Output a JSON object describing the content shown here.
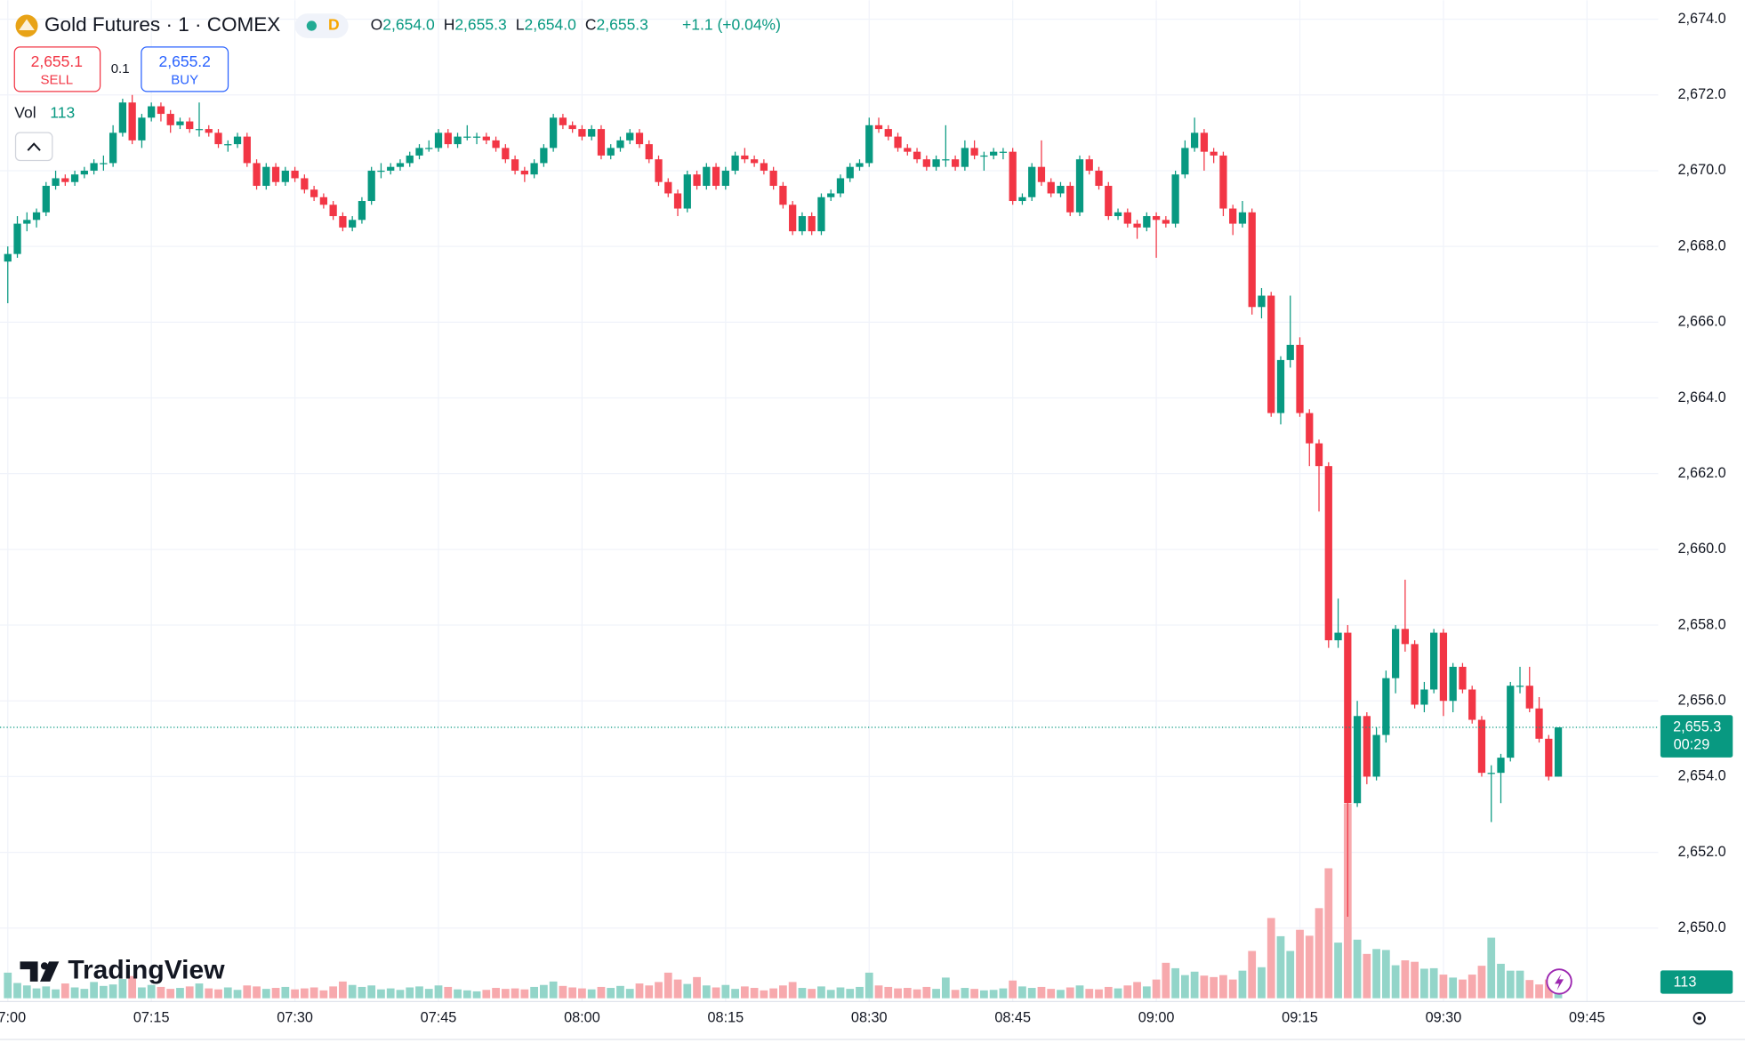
{
  "header": {
    "symbol": "Gold Futures · 1 · COMEX",
    "badge": "D",
    "ohlc": [
      {
        "key": "O",
        "value": "2,654.0"
      },
      {
        "key": "H",
        "value": "2,655.3"
      },
      {
        "key": "L",
        "value": "2,654.0"
      },
      {
        "key": "C",
        "value": "2,655.3"
      }
    ],
    "change": "+1.1 (+0.04%)",
    "sell_price": "2,655.1",
    "sell": "SELL",
    "spread": "0.1",
    "buy_price": "2,655.2",
    "buy": "BUY",
    "vol_label": "Vol"
  },
  "logo": "TradingView",
  "last_price_label": "2,655.3",
  "countdown": "00:29",
  "chart_data": {
    "type": "candlestick",
    "up_color": "#089981",
    "down_color": "#f23645",
    "vol_up_color": "#93d5c9",
    "vol_down_color": "#f7a9ad",
    "grid": true,
    "ylim": [
      2648.06,
      2674.5
    ],
    "yticks": [
      {
        "value": 2650,
        "label": "2,650.0"
      },
      {
        "value": 2652,
        "label": "2,652.0"
      },
      {
        "value": 2654,
        "label": "2,654.0"
      },
      {
        "value": 2656,
        "label": "2,656.0"
      },
      {
        "value": 2658,
        "label": "2,658.0"
      },
      {
        "value": 2660,
        "label": "2,660.0"
      },
      {
        "value": 2662,
        "label": "2,662.0"
      },
      {
        "value": 2664,
        "label": "2,664.0"
      },
      {
        "value": 2666,
        "label": "2,666.0"
      },
      {
        "value": 2668,
        "label": "2,668.0"
      },
      {
        "value": 2670,
        "label": "2,670.0"
      },
      {
        "value": 2672,
        "label": "2,672.0"
      },
      {
        "value": 2674,
        "label": "2,674.0"
      }
    ],
    "xlim": [
      -0.814,
      172.44
    ],
    "xticks": [
      {
        "value": 0,
        "label": "07:00"
      },
      {
        "value": 15,
        "label": "07:15"
      },
      {
        "value": 30,
        "label": "07:30"
      },
      {
        "value": 45,
        "label": "07:45"
      },
      {
        "value": 60,
        "label": "08:00"
      },
      {
        "value": 75,
        "label": "08:15"
      },
      {
        "value": 90,
        "label": "08:30"
      },
      {
        "value": 105,
        "label": "08:45"
      },
      {
        "value": 120,
        "label": "09:00"
      },
      {
        "value": 135,
        "label": "09:15"
      },
      {
        "value": 150,
        "label": "09:30"
      },
      {
        "value": 165,
        "label": "09:45"
      }
    ],
    "vlim": [
      0,
      20000
    ],
    "ohlc": [
      [
        2667.6,
        2668.0,
        2666.5,
        2667.8
      ],
      [
        2667.8,
        2668.8,
        2667.7,
        2668.6
      ],
      [
        2668.6,
        2668.9,
        2668.4,
        2668.7
      ],
      [
        2668.7,
        2669.0,
        2668.5,
        2668.9
      ],
      [
        2668.9,
        2669.7,
        2668.8,
        2669.6
      ],
      [
        2669.6,
        2670.0,
        2669.5,
        2669.8
      ],
      [
        2669.8,
        2669.9,
        2669.6,
        2669.7
      ],
      [
        2669.7,
        2670.0,
        2669.6,
        2669.9
      ],
      [
        2669.9,
        2670.1,
        2669.8,
        2670.0
      ],
      [
        2670.0,
        2670.3,
        2669.9,
        2670.2
      ],
      [
        2670.2,
        2670.4,
        2670.0,
        2670.2
      ],
      [
        2670.2,
        2671.2,
        2670.1,
        2671.0
      ],
      [
        2671.0,
        2671.9,
        2670.9,
        2671.8
      ],
      [
        2671.8,
        2672.0,
        2670.7,
        2670.8
      ],
      [
        2670.8,
        2671.5,
        2670.6,
        2671.4
      ],
      [
        2671.4,
        2671.8,
        2671.3,
        2671.7
      ],
      [
        2671.7,
        2671.8,
        2671.3,
        2671.5
      ],
      [
        2671.5,
        2671.6,
        2671.0,
        2671.2
      ],
      [
        2671.2,
        2671.4,
        2671.1,
        2671.3
      ],
      [
        2671.3,
        2671.4,
        2671.0,
        2671.1
      ],
      [
        2671.1,
        2671.8,
        2670.9,
        2671.1
      ],
      [
        2671.1,
        2671.2,
        2670.9,
        2671.0
      ],
      [
        2671.0,
        2671.1,
        2670.6,
        2670.7
      ],
      [
        2670.7,
        2670.8,
        2670.5,
        2670.7
      ],
      [
        2670.7,
        2671.0,
        2670.6,
        2670.9
      ],
      [
        2670.9,
        2671.0,
        2670.1,
        2670.2
      ],
      [
        2670.2,
        2670.3,
        2669.5,
        2669.6
      ],
      [
        2669.6,
        2670.2,
        2669.5,
        2670.1
      ],
      [
        2670.1,
        2670.2,
        2669.6,
        2669.7
      ],
      [
        2669.7,
        2670.1,
        2669.6,
        2670.0
      ],
      [
        2670.0,
        2670.1,
        2669.7,
        2669.8
      ],
      [
        2669.8,
        2669.9,
        2669.4,
        2669.5
      ],
      [
        2669.5,
        2669.6,
        2669.2,
        2669.3
      ],
      [
        2669.3,
        2669.4,
        2669.0,
        2669.1
      ],
      [
        2669.1,
        2669.2,
        2668.7,
        2668.8
      ],
      [
        2668.8,
        2668.9,
        2668.4,
        2668.5
      ],
      [
        2668.5,
        2668.8,
        2668.4,
        2668.7
      ],
      [
        2668.7,
        2669.3,
        2668.6,
        2669.2
      ],
      [
        2669.2,
        2670.1,
        2669.1,
        2670.0
      ],
      [
        2670.0,
        2670.2,
        2669.8,
        2670.0
      ],
      [
        2670.0,
        2670.2,
        2669.9,
        2670.1
      ],
      [
        2670.1,
        2670.3,
        2670.0,
        2670.2
      ],
      [
        2670.2,
        2670.5,
        2670.1,
        2670.4
      ],
      [
        2670.4,
        2670.7,
        2670.3,
        2670.6
      ],
      [
        2670.6,
        2670.8,
        2670.5,
        2670.6
      ],
      [
        2670.6,
        2671.1,
        2670.5,
        2671.0
      ],
      [
        2671.0,
        2671.1,
        2670.6,
        2670.7
      ],
      [
        2670.7,
        2671.0,
        2670.6,
        2670.9
      ],
      [
        2670.9,
        2671.2,
        2670.8,
        2670.9
      ],
      [
        2670.9,
        2671.0,
        2670.7,
        2670.9
      ],
      [
        2670.9,
        2671.0,
        2670.7,
        2670.8
      ],
      [
        2670.8,
        2670.9,
        2670.5,
        2670.6
      ],
      [
        2670.6,
        2670.7,
        2670.2,
        2670.3
      ],
      [
        2670.3,
        2670.4,
        2669.9,
        2670.0
      ],
      [
        2670.0,
        2670.1,
        2669.7,
        2669.9
      ],
      [
        2669.9,
        2670.3,
        2669.8,
        2670.2
      ],
      [
        2670.2,
        2670.7,
        2670.1,
        2670.6
      ],
      [
        2670.6,
        2671.5,
        2670.5,
        2671.4
      ],
      [
        2671.4,
        2671.5,
        2671.1,
        2671.2
      ],
      [
        2671.2,
        2671.3,
        2671.0,
        2671.1
      ],
      [
        2671.1,
        2671.2,
        2670.8,
        2670.9
      ],
      [
        2670.9,
        2671.2,
        2670.8,
        2671.1
      ],
      [
        2671.1,
        2671.2,
        2670.3,
        2670.4
      ],
      [
        2670.4,
        2670.7,
        2670.3,
        2670.6
      ],
      [
        2670.6,
        2670.9,
        2670.5,
        2670.8
      ],
      [
        2670.8,
        2671.1,
        2670.7,
        2671.0
      ],
      [
        2671.0,
        2671.1,
        2670.6,
        2670.7
      ],
      [
        2670.7,
        2670.8,
        2670.2,
        2670.3
      ],
      [
        2670.3,
        2670.4,
        2669.6,
        2669.7
      ],
      [
        2669.7,
        2669.8,
        2669.3,
        2669.4
      ],
      [
        2669.4,
        2669.5,
        2668.8,
        2669.0
      ],
      [
        2669.0,
        2670.0,
        2668.9,
        2669.9
      ],
      [
        2669.9,
        2670.0,
        2669.5,
        2669.6
      ],
      [
        2669.6,
        2670.2,
        2669.5,
        2670.1
      ],
      [
        2670.1,
        2670.2,
        2669.5,
        2669.6
      ],
      [
        2669.6,
        2670.1,
        2669.5,
        2670.0
      ],
      [
        2670.0,
        2670.5,
        2669.9,
        2670.4
      ],
      [
        2670.4,
        2670.6,
        2670.2,
        2670.3
      ],
      [
        2670.3,
        2670.4,
        2670.1,
        2670.2
      ],
      [
        2670.2,
        2670.3,
        2669.9,
        2670.0
      ],
      [
        2670.0,
        2670.1,
        2669.5,
        2669.6
      ],
      [
        2669.6,
        2669.7,
        2669.0,
        2669.1
      ],
      [
        2669.1,
        2669.2,
        2668.3,
        2668.4
      ],
      [
        2668.4,
        2668.9,
        2668.3,
        2668.8
      ],
      [
        2668.8,
        2668.9,
        2668.3,
        2668.4
      ],
      [
        2668.4,
        2669.4,
        2668.3,
        2669.3
      ],
      [
        2669.3,
        2669.5,
        2669.2,
        2669.4
      ],
      [
        2669.4,
        2669.9,
        2669.3,
        2669.8
      ],
      [
        2669.8,
        2670.2,
        2669.7,
        2670.1
      ],
      [
        2670.1,
        2670.3,
        2670.0,
        2670.2
      ],
      [
        2670.2,
        2671.4,
        2670.1,
        2671.2
      ],
      [
        2671.2,
        2671.4,
        2671.0,
        2671.1
      ],
      [
        2671.1,
        2671.2,
        2670.8,
        2670.9
      ],
      [
        2670.9,
        2671.0,
        2670.5,
        2670.6
      ],
      [
        2670.6,
        2670.7,
        2670.4,
        2670.5
      ],
      [
        2670.5,
        2670.6,
        2670.2,
        2670.3
      ],
      [
        2670.3,
        2670.4,
        2670.0,
        2670.1
      ],
      [
        2670.1,
        2670.4,
        2670.0,
        2670.3
      ],
      [
        2670.3,
        2671.2,
        2670.1,
        2670.3
      ],
      [
        2670.3,
        2670.4,
        2670.0,
        2670.1
      ],
      [
        2670.1,
        2670.8,
        2670.0,
        2670.6
      ],
      [
        2670.6,
        2670.8,
        2670.3,
        2670.4
      ],
      [
        2670.4,
        2670.5,
        2670.0,
        2670.4
      ],
      [
        2670.4,
        2670.6,
        2670.3,
        2670.5
      ],
      [
        2670.5,
        2670.6,
        2670.3,
        2670.5
      ],
      [
        2670.5,
        2670.6,
        2669.1,
        2669.2
      ],
      [
        2669.2,
        2669.4,
        2669.1,
        2669.3
      ],
      [
        2669.3,
        2670.2,
        2669.2,
        2670.1
      ],
      [
        2670.1,
        2670.8,
        2669.6,
        2669.7
      ],
      [
        2669.7,
        2669.8,
        2669.3,
        2669.4
      ],
      [
        2669.4,
        2669.7,
        2669.3,
        2669.6
      ],
      [
        2669.6,
        2669.7,
        2668.8,
        2668.9
      ],
      [
        2668.9,
        2670.4,
        2668.8,
        2670.3
      ],
      [
        2670.3,
        2670.4,
        2669.9,
        2670.0
      ],
      [
        2670.0,
        2670.1,
        2669.5,
        2669.6
      ],
      [
        2669.6,
        2669.7,
        2668.7,
        2668.8
      ],
      [
        2668.8,
        2669.0,
        2668.7,
        2668.9
      ],
      [
        2668.9,
        2669.0,
        2668.5,
        2668.6
      ],
      [
        2668.6,
        2668.7,
        2668.2,
        2668.5
      ],
      [
        2668.5,
        2668.9,
        2668.4,
        2668.8
      ],
      [
        2668.8,
        2668.9,
        2667.7,
        2668.7
      ],
      [
        2668.7,
        2668.8,
        2668.5,
        2668.6
      ],
      [
        2668.6,
        2670.0,
        2668.5,
        2669.9
      ],
      [
        2669.9,
        2670.8,
        2669.8,
        2670.6
      ],
      [
        2670.6,
        2671.4,
        2670.5,
        2671.0
      ],
      [
        2671.0,
        2671.1,
        2670.0,
        2670.5
      ],
      [
        2670.5,
        2670.6,
        2670.2,
        2670.4
      ],
      [
        2670.4,
        2670.5,
        2668.8,
        2669.0
      ],
      [
        2669.0,
        2669.1,
        2668.3,
        2668.6
      ],
      [
        2668.6,
        2669.2,
        2668.5,
        2668.9
      ],
      [
        2668.9,
        2669.0,
        2666.2,
        2666.4
      ],
      [
        2666.4,
        2666.9,
        2666.1,
        2666.7
      ],
      [
        2666.7,
        2666.8,
        2663.5,
        2663.6
      ],
      [
        2663.6,
        2665.1,
        2663.3,
        2665.0
      ],
      [
        2665.0,
        2666.7,
        2664.8,
        2665.4
      ],
      [
        2665.4,
        2665.6,
        2663.5,
        2663.6
      ],
      [
        2663.6,
        2663.7,
        2662.2,
        2662.8
      ],
      [
        2662.8,
        2662.9,
        2661.0,
        2662.2
      ],
      [
        2662.2,
        2662.3,
        2657.4,
        2657.6
      ],
      [
        2657.6,
        2658.7,
        2657.4,
        2657.8
      ],
      [
        2657.8,
        2658.0,
        2650.3,
        2653.3
      ],
      [
        2653.3,
        2656.0,
        2653.2,
        2655.6
      ],
      [
        2655.6,
        2655.7,
        2653.8,
        2654.0
      ],
      [
        2654.0,
        2655.3,
        2653.9,
        2655.1
      ],
      [
        2655.1,
        2656.8,
        2654.9,
        2656.6
      ],
      [
        2656.6,
        2658.0,
        2656.2,
        2657.9
      ],
      [
        2657.9,
        2659.2,
        2657.3,
        2657.5
      ],
      [
        2657.5,
        2657.6,
        2655.8,
        2655.9
      ],
      [
        2655.9,
        2656.5,
        2655.7,
        2656.3
      ],
      [
        2656.3,
        2657.9,
        2656.2,
        2657.8
      ],
      [
        2657.8,
        2657.9,
        2655.6,
        2656.0
      ],
      [
        2656.0,
        2657.0,
        2655.7,
        2656.9
      ],
      [
        2656.9,
        2657.0,
        2656.2,
        2656.3
      ],
      [
        2656.3,
        2656.4,
        2655.4,
        2655.5
      ],
      [
        2655.5,
        2655.6,
        2654.0,
        2654.1
      ],
      [
        2654.1,
        2654.3,
        2652.8,
        2654.1
      ],
      [
        2654.1,
        2654.6,
        2653.3,
        2654.5
      ],
      [
        2654.5,
        2656.5,
        2654.4,
        2656.4
      ],
      [
        2656.4,
        2656.9,
        2656.2,
        2656.4
      ],
      [
        2656.4,
        2656.9,
        2655.7,
        2655.8
      ],
      [
        2655.8,
        2656.1,
        2654.9,
        2655.0
      ],
      [
        2655.0,
        2655.1,
        2653.9,
        2654.0
      ],
      [
        2654.0,
        2655.3,
        2654.0,
        2655.3
      ]
    ],
    "volume": [
      520,
      310,
      260,
      200,
      240,
      180,
      300,
      220,
      190,
      330,
      250,
      280,
      390,
      450,
      220,
      270,
      230,
      190,
      210,
      240,
      300,
      200,
      180,
      220,
      170,
      260,
      240,
      190,
      210,
      230,
      180,
      200,
      220,
      160,
      240,
      340,
      270,
      230,
      260,
      180,
      200,
      170,
      220,
      240,
      190,
      260,
      230,
      180,
      160,
      140,
      170,
      210,
      190,
      200,
      180,
      230,
      270,
      340,
      250,
      220,
      200,
      180,
      230,
      210,
      250,
      190,
      300,
      260,
      330,
      520,
      380,
      290,
      430,
      260,
      220,
      270,
      190,
      240,
      210,
      160,
      200,
      260,
      330,
      210,
      190,
      240,
      170,
      220,
      190,
      230,
      520,
      260,
      230,
      200,
      210,
      180,
      230,
      190,
      420,
      170,
      210,
      190,
      160,
      170,
      200,
      360,
      240,
      210,
      230,
      190,
      170,
      220,
      260,
      190,
      180,
      230,
      200,
      260,
      330,
      240,
      380,
      720,
      610,
      470,
      540,
      460,
      430,
      470,
      380,
      560,
      960,
      630,
      1630,
      1260,
      960,
      1390,
      1270,
      1830,
      2640,
      1130,
      3950,
      1190,
      900,
      1000,
      980,
      670,
      770,
      740,
      600,
      610,
      480,
      420,
      380,
      480,
      660,
      1230,
      700,
      560,
      560,
      370,
      280,
      380,
      113
    ]
  }
}
